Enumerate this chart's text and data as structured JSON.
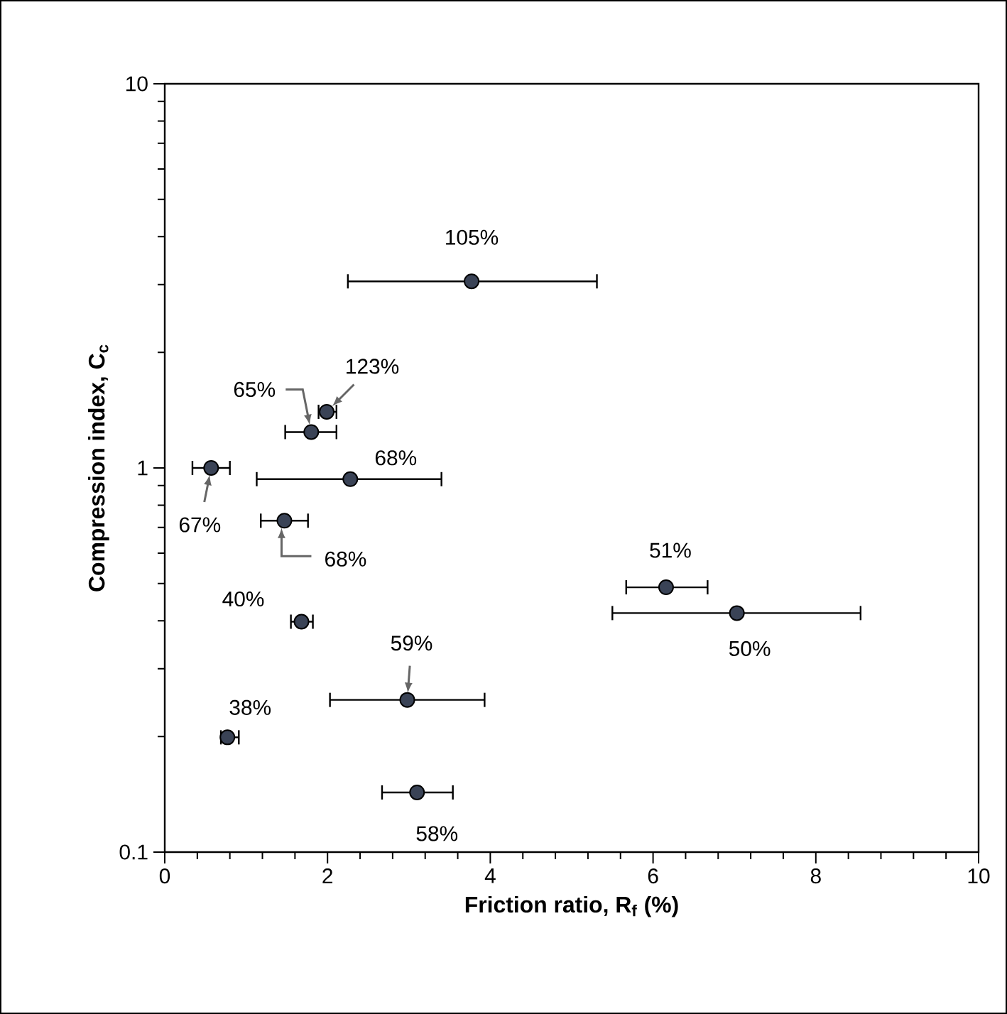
{
  "chart_data": {
    "type": "scatter",
    "xlabel": "Friction ratio, R$_{f}$ (%)",
    "ylabel": "Compression index, C$_{c}$",
    "log": "y",
    "marker": "circle",
    "color": "#3a4356",
    "x": [
      3.77,
      1.99,
      1.8,
      0.57,
      2.28,
      1.47,
      1.68,
      2.98,
      0.77,
      3.1,
      6.16,
      7.03
    ],
    "values": [
      3.06,
      1.4,
      1.24,
      1.0,
      0.935,
      0.729,
      0.398,
      0.249,
      0.199,
      0.143,
      0.489,
      0.419
    ],
    "xerrors": [
      [
        2.25,
        5.31
      ],
      [
        1.89,
        2.11
      ],
      [
        1.48,
        2.11
      ],
      [
        0.34,
        0.8
      ],
      [
        1.13,
        3.4
      ],
      [
        1.18,
        1.76
      ],
      [
        1.55,
        1.82
      ],
      [
        2.03,
        3.93
      ],
      [
        0.69,
        0.91
      ],
      [
        2.67,
        3.54
      ],
      [
        5.67,
        6.67
      ],
      [
        5.5,
        8.55
      ]
    ],
    "xlim": [
      0,
      10
    ],
    "xticks": [
      0,
      2,
      4,
      6,
      8,
      10
    ],
    "ylim": [
      0.1,
      10
    ],
    "yticks": [
      0.1,
      1,
      10
    ],
    "annotations": [
      {
        "text": "105%",
        "x": 3.77,
        "y": 3.06
      },
      {
        "text": "123%",
        "x": 1.99,
        "y": 1.4
      },
      {
        "text": "65%",
        "x": 1.8,
        "y": 1.24
      },
      {
        "text": "67%",
        "x": 0.57,
        "y": 1.0
      },
      {
        "text": "68%",
        "x": 2.28,
        "y": 0.935
      },
      {
        "text": "68%",
        "x": 1.47,
        "y": 0.729
      },
      {
        "text": "40%",
        "x": 1.68,
        "y": 0.398
      },
      {
        "text": "59%",
        "x": 2.98,
        "y": 0.249
      },
      {
        "text": "38%",
        "x": 0.77,
        "y": 0.199
      },
      {
        "text": "58%",
        "x": 3.1,
        "y": 0.143
      },
      {
        "text": "51%",
        "x": 6.16,
        "y": 0.489
      },
      {
        "text": "50%",
        "x": 7.03,
        "y": 0.419
      }
    ]
  }
}
